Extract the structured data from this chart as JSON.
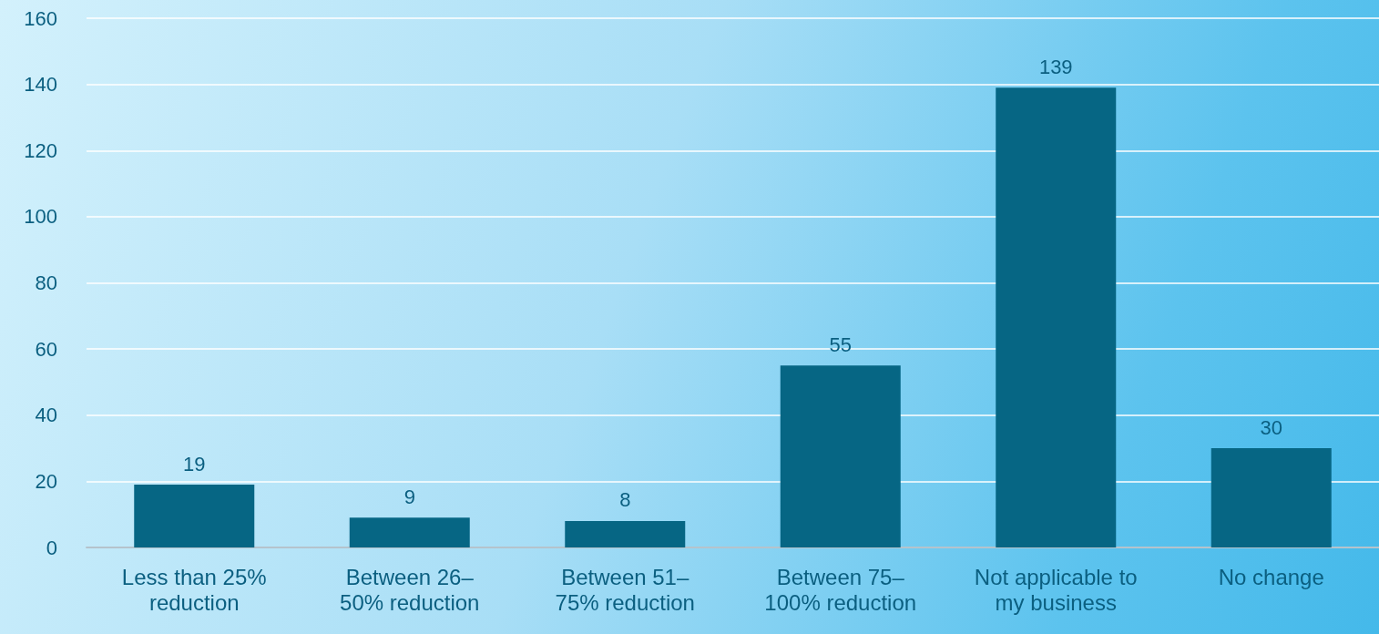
{
  "chart_data": {
    "type": "bar",
    "categories": [
      "Less than 25% reduction",
      "Between 26–50% reduction",
      "Between 51–75% reduction",
      "Between 75–100% reduction",
      "Not applicable to my business",
      "No change"
    ],
    "values": [
      19,
      9,
      8,
      55,
      139,
      30
    ],
    "color": "#066684",
    "ylim": [
      0,
      160
    ],
    "yticks": [
      0,
      20,
      40,
      60,
      80,
      100,
      120,
      140,
      160
    ],
    "grid": "y",
    "data_labels": true
  }
}
